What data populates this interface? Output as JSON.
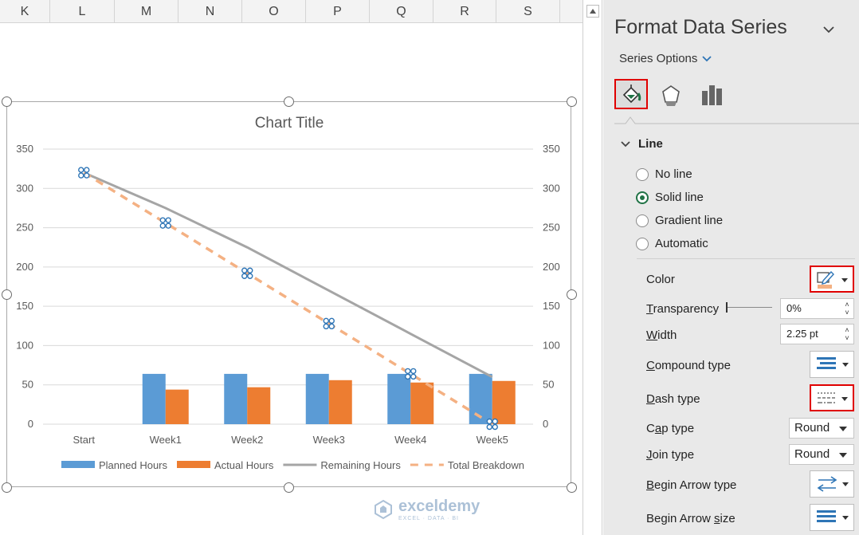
{
  "sheet": {
    "columns": [
      "K",
      "L",
      "M",
      "N",
      "O",
      "P",
      "Q",
      "R",
      "S"
    ]
  },
  "chart_data": {
    "type": "bar",
    "title": "Chart Title",
    "categories": [
      "Start",
      "Week1",
      "Week2",
      "Week3",
      "Week4",
      "Week5"
    ],
    "ylim": [
      0,
      350
    ],
    "yticks": [
      0,
      50,
      100,
      150,
      200,
      250,
      300,
      350
    ],
    "secondary_ylim": [
      0,
      350
    ],
    "grid": true,
    "legend_position": "bottom",
    "series": [
      {
        "name": "Planned Hours",
        "kind": "bar",
        "color": "#5b9bd5",
        "values": [
          null,
          64,
          64,
          64,
          64,
          64
        ]
      },
      {
        "name": "Actual Hours",
        "kind": "bar",
        "color": "#ed7d31",
        "values": [
          null,
          44,
          47,
          56,
          53,
          55
        ]
      },
      {
        "name": "Remaining Hours",
        "kind": "line",
        "color": "#a5a5a5",
        "values": [
          320,
          275,
          225,
          170,
          115,
          60
        ]
      },
      {
        "name": "Total Breakdown",
        "kind": "dashed-line",
        "color": "#f4b183",
        "selected": true,
        "values": [
          320,
          256,
          192,
          128,
          64,
          0
        ]
      }
    ]
  },
  "pane": {
    "title": "Format Data Series",
    "series_options": "Series Options",
    "section": "Line",
    "radios": [
      {
        "label": "No line",
        "checked": false
      },
      {
        "label": "Solid line",
        "checked": true
      },
      {
        "label": "Gradient line",
        "checked": false
      },
      {
        "label": "Automatic",
        "checked": false
      }
    ],
    "color_label": "Color",
    "color_value": "#f4b183",
    "transparency_label": "Transparency",
    "transparency_value": "0%",
    "width_label": "Width",
    "width_value": "2.25 pt",
    "compound_label": "Compound type",
    "dash_label": "Dash type",
    "cap_label": "Cap type",
    "cap_value": "Round",
    "join_label": "Join type",
    "join_value": "Round",
    "begin_arrow_type_label": "Begin Arrow type",
    "begin_arrow_size_label": "Begin Arrow size"
  },
  "watermark": {
    "name": "exceldemy",
    "sub": "EXCEL · DATA · BI"
  }
}
